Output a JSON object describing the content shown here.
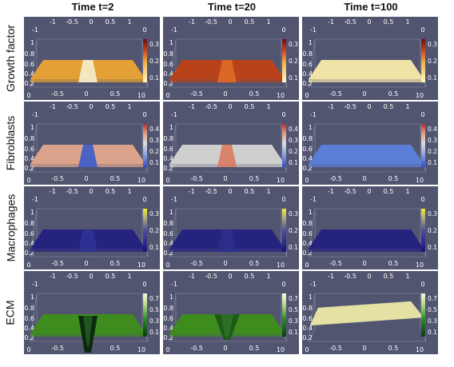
{
  "column_headers": [
    "Time t=2",
    "Time t=20",
    "Time t=100"
  ],
  "row_labels": [
    "Growth factor",
    "Fibroblasts",
    "Macrophages",
    "ECM"
  ],
  "axis_ticks": {
    "back_row": [
      "-1",
      "-0.5",
      "0",
      "0.5",
      "1"
    ],
    "back_left": "-1",
    "back_right": "0",
    "vertical": [
      "1",
      "0.8",
      "0.6",
      "0.4",
      "0.2"
    ],
    "front_left": "0",
    "front_row": [
      "-0.5",
      "0",
      "0.5"
    ],
    "front_right": "10"
  },
  "colorbar_ticks": {
    "growth_factor": [
      "0.3",
      "0.2",
      "0.1"
    ],
    "fibroblasts": [
      "0.4",
      "0.3",
      "0.2",
      "0.1"
    ],
    "macrophages": [
      "0.3",
      "0.2",
      "0.1"
    ],
    "ecm": [
      "0.7",
      "0.5",
      "0.3",
      "0.1"
    ]
  },
  "colors": {
    "panel_background": "#525570",
    "growth_t2": "#e3a036",
    "growth_t20": "#b8431b",
    "growth_t100": "#efe3a8",
    "fibro_t2": "#dba38c",
    "fibro_t20": "#cfcfcf",
    "fibro_t100": "#5b7fd6",
    "macro": "#26237f",
    "ecm_t2": "#3e8c1e",
    "ecm_t20": "#3e8c1e",
    "ecm_t100": "#e4e1a4"
  }
}
